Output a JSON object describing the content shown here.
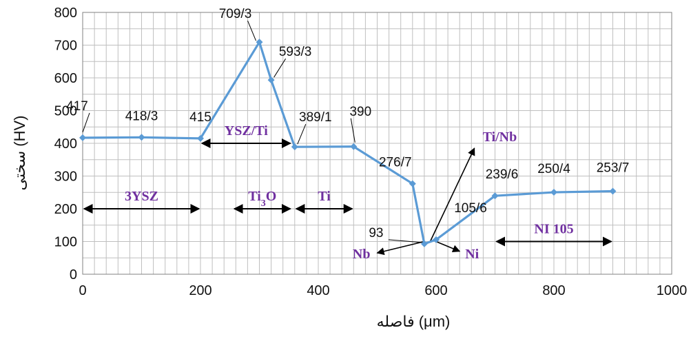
{
  "colors": {
    "series": "#5B9BD5",
    "regions": "#7030A0",
    "grid": "#BFBFBF"
  },
  "chart_data": {
    "type": "line",
    "xlabel": "فاصله (μm)",
    "ylabel": "سختی (HV)",
    "xlim": [
      0,
      1000
    ],
    "ylim": [
      0,
      800
    ],
    "x_ticks": [
      "0",
      "200",
      "400",
      "600",
      "800",
      "1000"
    ],
    "y_ticks": [
      "0",
      "100",
      "200",
      "300",
      "400",
      "500",
      "600",
      "700",
      "800"
    ],
    "grid": true,
    "series": [
      {
        "x": [
          0,
          100,
          200,
          300,
          320,
          360,
          460,
          560,
          580,
          600,
          700,
          800,
          900
        ],
        "y": [
          417,
          418.3,
          415,
          709.3,
          593.3,
          389.1,
          390,
          276.7,
          93,
          105.6,
          239.6,
          250.4,
          253.7
        ],
        "labels": [
          "417",
          "418/3",
          "415",
          "709/3",
          "593/3",
          "389/1",
          "390",
          "276/7",
          "93",
          "105/6",
          "239/6",
          "250/4",
          "253/7"
        ]
      }
    ],
    "regions": [
      {
        "label": "3YSZ",
        "from": 0,
        "to": 200,
        "y": 200
      },
      {
        "label": "Ti",
        "label_sub": "3",
        "label_tail": "O",
        "from": 255,
        "to": 355,
        "y": 200
      },
      {
        "label": "Ti",
        "from": 360,
        "to": 460,
        "y": 200
      },
      {
        "label": "YSZ/Ti",
        "from": 200,
        "to": 355,
        "y": 400
      },
      {
        "label": "NI 105",
        "from": 700,
        "to": 900,
        "y": 100
      }
    ],
    "interfaces": [
      {
        "label": "Ti/Nb",
        "from_x": 590,
        "from_y": 100,
        "to_x": 665,
        "to_y": 385
      },
      {
        "label": "Nb",
        "from_x": 580,
        "from_y": 100,
        "to_x": 500,
        "to_y": 65
      },
      {
        "label": "Ni",
        "from_x": 600,
        "from_y": 100,
        "to_x": 640,
        "to_y": 70
      }
    ]
  }
}
